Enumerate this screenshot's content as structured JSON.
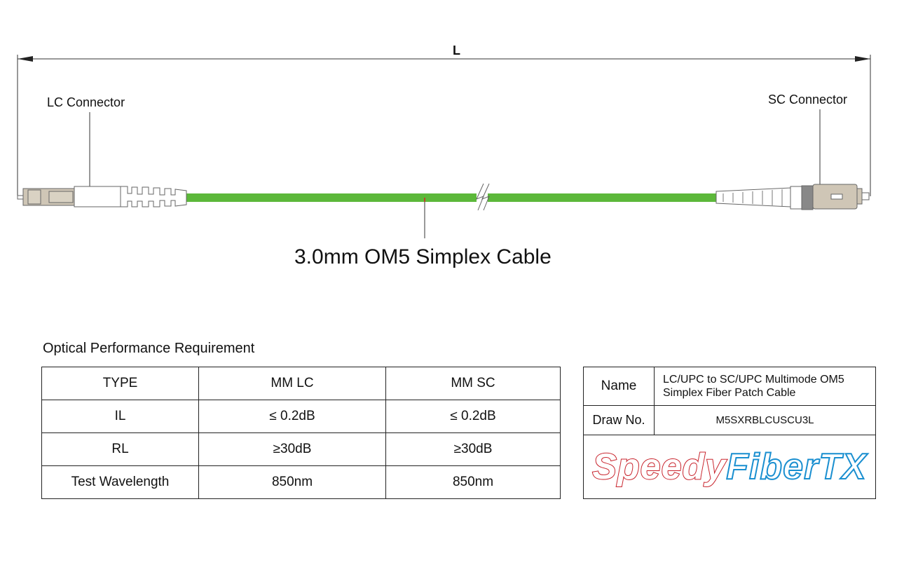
{
  "diagram": {
    "length_label": "L",
    "left_connector": "LC Connector",
    "right_connector": "SC Connector",
    "cable_label": "3.0mm OM5 Simplex Cable",
    "colors": {
      "cable": "#5cb83a",
      "connector_body": "#cfc6b6",
      "logo_red": "#c8232c",
      "logo_blue": "#1a8fd0"
    }
  },
  "performance": {
    "title": "Optical Performance Requirement",
    "headers": [
      "TYPE",
      "MM LC",
      "MM SC"
    ],
    "rows": [
      [
        "IL",
        "≤ 0.2dB",
        "≤ 0.2dB"
      ],
      [
        "RL",
        "≥30dB",
        "≥30dB"
      ],
      [
        "Test Wavelength",
        "850nm",
        "850nm"
      ]
    ]
  },
  "info": {
    "name_label": "Name",
    "name_line1": "LC/UPC to SC/UPC Multimode OM5",
    "name_line2": "Simplex Fiber Patch Cable",
    "draw_label": "Draw No.",
    "draw_value": "M5SXRBLCUSCU3L",
    "logo_part1": "Speedy",
    "logo_part2": "FiberTX"
  }
}
